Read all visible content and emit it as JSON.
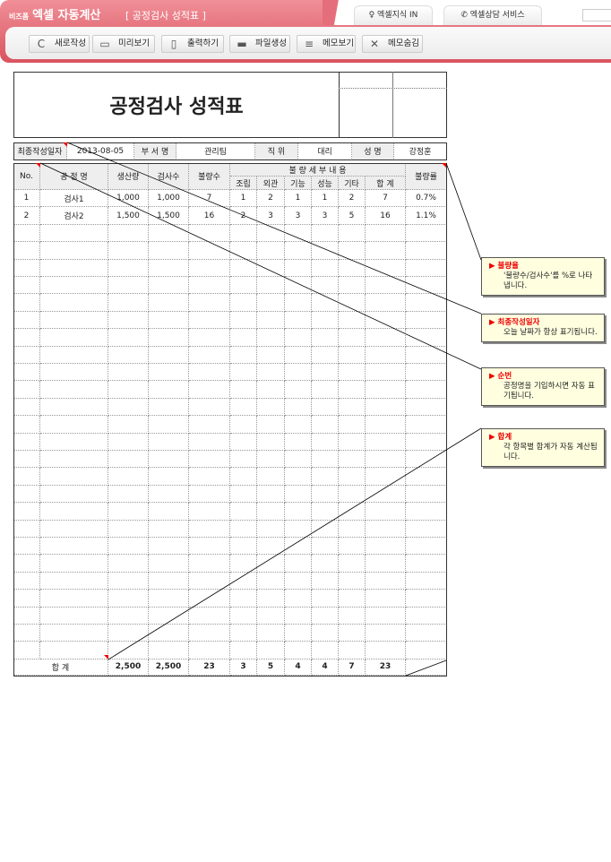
{
  "header": {
    "brand_small": "비즈폼",
    "brand": "엑셀 자동계산",
    "title": "[ 공정검사 성적표 ]",
    "tabs": [
      {
        "label": "엑셀지식 IN",
        "icon": "lightbulb-icon"
      },
      {
        "label": "엑셀상담 서비스",
        "icon": "phone-icon"
      }
    ]
  },
  "toolbar": [
    {
      "label": "새로작성",
      "icon": "refresh-icon",
      "glyph": "C"
    },
    {
      "label": "미리보기",
      "icon": "monitor-icon",
      "glyph": "▭"
    },
    {
      "label": "출력하기",
      "icon": "print-icon",
      "glyph": "▯"
    },
    {
      "label": "파일생성",
      "icon": "folder-icon",
      "glyph": "▬"
    },
    {
      "label": "메모보기",
      "icon": "memo-icon",
      "glyph": "≡"
    },
    {
      "label": "메모숨김",
      "icon": "memo-hide-icon",
      "glyph": "✕"
    }
  ],
  "sheet": {
    "title": "공정검사 성적표",
    "info": {
      "date_label": "최종작성일자",
      "date": "2013-08-05",
      "dept_label": "부 서 명",
      "dept": "관리팀",
      "pos_label": "직   위",
      "pos": "대리",
      "name_label": "성   명",
      "name": "강정훈"
    },
    "headers": {
      "no": "No.",
      "process": "공   정   명",
      "production": "생산량",
      "inspected": "검사수",
      "defects": "불량수",
      "detail": "불 량 세 부 내 용",
      "sub": [
        "조립",
        "외관",
        "기능",
        "성능",
        "기타",
        "합 계"
      ],
      "rate": "불량률"
    },
    "rows": [
      [
        "1",
        "검사1",
        "1,000",
        "1,000",
        "7",
        "1",
        "2",
        "1",
        "1",
        "2",
        "7",
        "0.7%"
      ],
      [
        "2",
        "검사2",
        "1,500",
        "1,500",
        "16",
        "2",
        "3",
        "3",
        "3",
        "5",
        "16",
        "1.1%"
      ]
    ],
    "total": {
      "label": "합      계",
      "values": [
        "2,500",
        "2,500",
        "23",
        "3",
        "5",
        "4",
        "4",
        "7",
        "23"
      ]
    }
  },
  "callouts": [
    {
      "title": "불량율",
      "body": "'불량수/검사수'를 %로 나타냅니다."
    },
    {
      "title": "최종작성일자",
      "body": "오늘 날짜가 항상 표기됩니다."
    },
    {
      "title": "순번",
      "body": "공정명을 기입하시면 자동 표기됩니다."
    },
    {
      "title": "합계",
      "body": "각 항목별 합계가 자동 계산됩니다."
    }
  ],
  "colors": {
    "accent": "#d9545f",
    "callout_bg": "#ffffe0",
    "callout_title": "#ee0000"
  }
}
